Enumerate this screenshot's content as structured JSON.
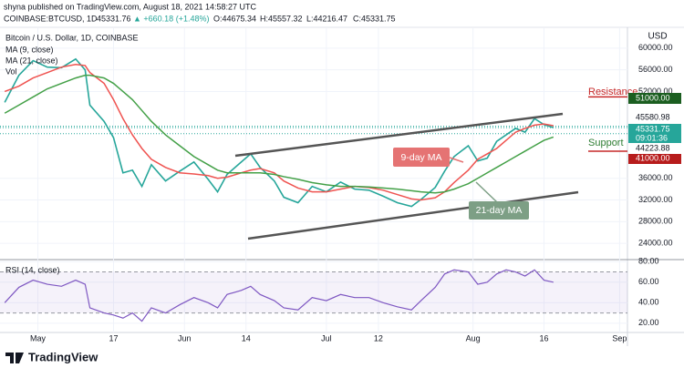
{
  "header": {
    "published": "shyna published on TradingView.com, August 18, 2021 14:58:27 UTC",
    "symbol": "COINBASE:BTCUSD, 1D",
    "last": "45331.76",
    "change": "▲ +660.18 (+1.48%)",
    "open": "O:44675.34",
    "high": "H:45557.32",
    "low": "L:44216.47",
    "close": "C:45331.75"
  },
  "footer": {
    "brand": "TradingView"
  },
  "chart_data": [
    {
      "type": "line",
      "unit": "USD",
      "volume_label": "Vol",
      "x": [
        "2021-04-24",
        "2021-04-27",
        "2021-04-30",
        "2021-05-03",
        "2021-05-06",
        "2021-05-09",
        "2021-05-11",
        "2021-05-12",
        "2021-05-15",
        "2021-05-17",
        "2021-05-19",
        "2021-05-21",
        "2021-05-23",
        "2021-05-25",
        "2021-05-28",
        "2021-05-31",
        "2021-06-03",
        "2021-06-06",
        "2021-06-08",
        "2021-06-10",
        "2021-06-13",
        "2021-06-15",
        "2021-06-17",
        "2021-06-20",
        "2021-06-22",
        "2021-06-25",
        "2021-06-28",
        "2021-07-01",
        "2021-07-04",
        "2021-07-07",
        "2021-07-10",
        "2021-07-13",
        "2021-07-16",
        "2021-07-19",
        "2021-07-21",
        "2021-07-24",
        "2021-07-26",
        "2021-07-28",
        "2021-07-31",
        "2021-08-02",
        "2021-08-04",
        "2021-08-06",
        "2021-08-08",
        "2021-08-10",
        "2021-08-12",
        "2021-08-14",
        "2021-08-16",
        "2021-08-18"
      ],
      "xlim": [
        "2021-04-23",
        "2021-09-04"
      ],
      "series": [
        {
          "name": "Bitcoin / U.S. Dollar, 1D, COINBASE",
          "color": "#26a69a",
          "width": 1.6,
          "values": [
            50000,
            55000,
            57700,
            56500,
            56400,
            58000,
            56000,
            49500,
            46500,
            43500,
            37000,
            37500,
            34500,
            38500,
            35500,
            37300,
            39000,
            35800,
            33500,
            36700,
            39000,
            40500,
            38000,
            35500,
            32500,
            31500,
            34500,
            33500,
            35300,
            34000,
            33800,
            32700,
            31500,
            30800,
            32100,
            34300,
            37300,
            40000,
            42000,
            39200,
            39700,
            42800,
            44000,
            45200,
            44500,
            47000,
            45900,
            45331.75
          ]
        },
        {
          "name": "MA (9, close)",
          "color": "#ef5350",
          "width": 1.5,
          "values": [
            52000,
            53000,
            54500,
            55500,
            56500,
            57000,
            56800,
            55500,
            53500,
            50500,
            47000,
            44000,
            41500,
            39500,
            38000,
            37000,
            36800,
            36500,
            36000,
            36200,
            37000,
            37500,
            37800,
            37000,
            35500,
            34200,
            33500,
            33500,
            34000,
            34500,
            34300,
            33800,
            33000,
            32200,
            32000,
            32400,
            33500,
            35200,
            37500,
            39500,
            40500,
            41500,
            43000,
            44500,
            45200,
            45800,
            46000,
            45700
          ]
        },
        {
          "name": "MA (21, close)",
          "color": "#43a047",
          "width": 1.5,
          "values": [
            48000,
            49500,
            51000,
            52500,
            53500,
            54500,
            55000,
            55000,
            54500,
            53500,
            52000,
            50500,
            48500,
            46500,
            44000,
            42000,
            40000,
            38500,
            37500,
            37000,
            37000,
            37000,
            37000,
            36700,
            36300,
            35800,
            35200,
            34800,
            34500,
            34500,
            34400,
            34200,
            34000,
            33700,
            33500,
            33300,
            33500,
            34000,
            35000,
            36000,
            37000,
            38000,
            39000,
            40000,
            41000,
            42000,
            43000,
            43600
          ]
        }
      ],
      "ylim": [
        21000,
        63000
      ],
      "yticks": [
        {
          "value": 24000,
          "label": "24000.00"
        },
        {
          "value": 28000,
          "label": "28000.00"
        },
        {
          "value": 32000,
          "label": "32000.00"
        },
        {
          "value": 36000,
          "label": "36000.00"
        },
        {
          "value": 52000,
          "label": "52000.00"
        },
        {
          "value": 56000,
          "label": "56000.00"
        },
        {
          "value": 60000,
          "label": "60000.00"
        }
      ],
      "grid": true,
      "levels": [
        {
          "name": "Resistance",
          "value": 51000,
          "label": "51000.00",
          "color": "#1b5e20",
          "text_color": "#c62828"
        },
        {
          "name": "Support",
          "value": 41000,
          "label": "41000.00",
          "color": "#b71c1c",
          "text_color": "#2e7d32"
        }
      ],
      "markers": [
        {
          "value": 45580.98,
          "label": "45580.98",
          "color": "#ffffff",
          "text_color": "#131722"
        },
        {
          "value": 45331.75,
          "label": "45331.75",
          "sub": "09:01:36",
          "color": "#26a69a",
          "text_color": "#ffffff"
        },
        {
          "value": 44223.88,
          "label": "44223.88",
          "color": "#ffffff",
          "text_color": "#131722"
        }
      ],
      "annotations": [
        {
          "text": "9-day MA",
          "color": "#e57373"
        },
        {
          "text": "21-day MA",
          "color": "#7d9f85"
        }
      ]
    },
    {
      "type": "line",
      "title": "RSI (14, close)",
      "x": [
        "2021-04-24",
        "2021-04-27",
        "2021-04-30",
        "2021-05-03",
        "2021-05-06",
        "2021-05-09",
        "2021-05-11",
        "2021-05-12",
        "2021-05-15",
        "2021-05-17",
        "2021-05-19",
        "2021-05-21",
        "2021-05-23",
        "2021-05-25",
        "2021-05-28",
        "2021-05-31",
        "2021-06-03",
        "2021-06-06",
        "2021-06-08",
        "2021-06-10",
        "2021-06-13",
        "2021-06-15",
        "2021-06-17",
        "2021-06-20",
        "2021-06-22",
        "2021-06-25",
        "2021-06-28",
        "2021-07-01",
        "2021-07-04",
        "2021-07-07",
        "2021-07-10",
        "2021-07-13",
        "2021-07-16",
        "2021-07-19",
        "2021-07-21",
        "2021-07-24",
        "2021-07-26",
        "2021-07-28",
        "2021-07-31",
        "2021-08-02",
        "2021-08-04",
        "2021-08-06",
        "2021-08-08",
        "2021-08-10",
        "2021-08-12",
        "2021-08-14",
        "2021-08-16",
        "2021-08-18"
      ],
      "xlim": [
        "2021-04-23",
        "2021-09-04"
      ],
      "xticks": [
        {
          "value": "2021-05-01",
          "label": "May"
        },
        {
          "value": "2021-05-17",
          "label": "17"
        },
        {
          "value": "2021-06-01",
          "label": "Jun"
        },
        {
          "value": "2021-06-14",
          "label": "14"
        },
        {
          "value": "2021-07-01",
          "label": "Jul"
        },
        {
          "value": "2021-07-12",
          "label": "12"
        },
        {
          "value": "2021-08-01",
          "label": "Aug"
        },
        {
          "value": "2021-08-16",
          "label": "16"
        },
        {
          "value": "2021-09-01",
          "label": "Sep"
        }
      ],
      "series": [
        {
          "color": "#7e57c2",
          "width": 1.2,
          "values": [
            40,
            55,
            62,
            58,
            56,
            62,
            58,
            35,
            30,
            28,
            25,
            30,
            22,
            35,
            30,
            38,
            45,
            40,
            35,
            48,
            52,
            56,
            48,
            42,
            35,
            33,
            45,
            42,
            48,
            45,
            45,
            40,
            36,
            33,
            42,
            55,
            68,
            72,
            70,
            58,
            60,
            68,
            72,
            70,
            66,
            72,
            62,
            60
          ]
        }
      ],
      "ylim": [
        11,
        82
      ],
      "yticks": [
        {
          "value": 20,
          "label": "20.00"
        },
        {
          "value": 40,
          "label": "40.00"
        },
        {
          "value": 60,
          "label": "60.00"
        },
        {
          "value": 80,
          "label": "80.00"
        }
      ],
      "band": [
        30,
        70
      ],
      "band_color": "#7e57c2"
    }
  ]
}
